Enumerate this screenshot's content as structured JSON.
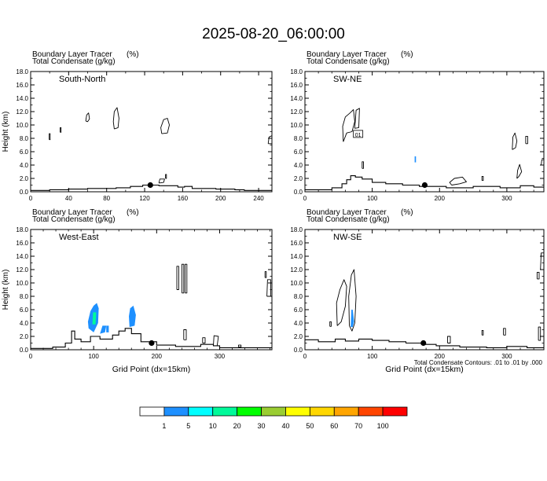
{
  "page": {
    "title": "2025-08-20_06:00:00",
    "colorbar": {
      "values": [
        "1",
        "5",
        "10",
        "20",
        "30",
        "40",
        "50",
        "60",
        "70",
        "100"
      ],
      "colors": [
        "#ffffff",
        "#1e90ff",
        "#00ffff",
        "#00fa9a",
        "#00ff00",
        "#9acd32",
        "#ffff00",
        "#ffd700",
        "#ffa500",
        "#ff4500",
        "#ff0000"
      ]
    },
    "contour_note": "Total Condensate Contours: .01 to .01 by .000"
  },
  "chart_data": [
    {
      "type": "line",
      "panel": "South-North",
      "header_line1": "Boundary Layer Tracer",
      "header_unit1": "(%)",
      "header_line2": "Total Condensate",
      "header_unit2": "(g/kg)",
      "ylabel": "Height (km)",
      "xlabel": "",
      "xlim": [
        0,
        254
      ],
      "ylim": [
        0,
        18
      ],
      "xticks": [
        0,
        40,
        80,
        120,
        160,
        200,
        240
      ],
      "yticks": [
        "0.0",
        "2.0",
        "4.0",
        "6.0",
        "8.0",
        "10.0",
        "12.0",
        "14.0",
        "16.0",
        "18.0"
      ],
      "terrain": {
        "x": [
          0,
          20,
          20,
          40,
          40,
          60,
          60,
          90,
          90,
          105,
          105,
          118,
          118,
          135,
          135,
          155,
          155,
          162,
          162,
          170,
          170,
          195,
          195,
          215,
          215,
          225,
          225,
          254
        ],
        "y": [
          0.2,
          0.2,
          0.3,
          0.3,
          0.4,
          0.4,
          0.5,
          0.5,
          0.6,
          0.6,
          0.8,
          0.8,
          1.0,
          1.0,
          0.9,
          0.9,
          0.7,
          0.7,
          0.8,
          0.8,
          0.5,
          0.5,
          0.4,
          0.4,
          0.3,
          0.3,
          0.2,
          0.2
        ]
      },
      "marker": {
        "x": 126,
        "y": 1.0
      },
      "contours": [
        {
          "x": [
            19.5,
            20.5,
            20.5,
            19.5,
            19.5
          ],
          "y": [
            7.8,
            7.8,
            8.7,
            8.7,
            7.8
          ]
        },
        {
          "x": [
            31,
            32,
            32,
            31,
            31
          ],
          "y": [
            8.9,
            8.9,
            9.6,
            9.6,
            8.9
          ]
        },
        {
          "x": [
            58,
            60,
            62,
            61,
            59,
            58
          ],
          "y": [
            10.6,
            10.5,
            10.9,
            11.8,
            11.5,
            10.6
          ]
        },
        {
          "x": [
            88,
            92,
            93,
            91,
            88,
            87,
            88
          ],
          "y": [
            9.4,
            9.6,
            11.0,
            12.6,
            12.0,
            10.5,
            9.4
          ]
        },
        {
          "x": [
            138,
            144,
            146,
            144,
            140,
            137,
            138
          ],
          "y": [
            8.7,
            8.8,
            10.0,
            11.0,
            10.8,
            9.6,
            8.7
          ]
        },
        {
          "x": [
            135,
            140,
            141,
            136,
            135
          ],
          "y": [
            1.3,
            1.4,
            1.9,
            1.9,
            1.3
          ]
        },
        {
          "x": [
            142,
            143,
            143,
            142,
            142
          ],
          "y": [
            2.0,
            2.0,
            2.6,
            2.6,
            2.0
          ]
        },
        {
          "x": [
            250,
            254,
            254,
            251,
            250
          ],
          "y": [
            7.2,
            7.2,
            8.4,
            8.2,
            7.2
          ]
        }
      ],
      "fills": []
    },
    {
      "type": "line",
      "panel": "SW-NE",
      "header_line1": "Boundary Layer Tracer",
      "header_unit1": "(%)",
      "header_line2": "Total Condensate",
      "header_unit2": "(g/kg)",
      "ylabel": "",
      "xlabel": "",
      "xlim": [
        0,
        355
      ],
      "ylim": [
        0,
        18
      ],
      "xticks": [
        0,
        100,
        200,
        300
      ],
      "yticks": [
        "0.0",
        "2.0",
        "4.0",
        "6.0",
        "8.0",
        "10.0",
        "12.0",
        "14.0",
        "16.0",
        "18.0"
      ],
      "terrain": {
        "x": [
          0,
          40,
          40,
          55,
          55,
          62,
          62,
          68,
          68,
          75,
          75,
          85,
          85,
          100,
          100,
          120,
          120,
          145,
          145,
          170,
          170,
          210,
          210,
          250,
          250,
          290,
          290,
          320,
          320,
          340,
          340,
          355
        ],
        "y": [
          0.3,
          0.3,
          0.6,
          0.6,
          1.2,
          1.2,
          1.8,
          1.8,
          2.4,
          2.4,
          2.2,
          2.2,
          1.9,
          1.9,
          1.4,
          1.4,
          1.2,
          1.2,
          1.0,
          1.0,
          0.8,
          0.8,
          0.6,
          0.6,
          0.8,
          0.8,
          0.6,
          0.6,
          0.9,
          0.9,
          0.7,
          0.7
        ]
      },
      "marker": {
        "x": 178,
        "y": 1.0
      },
      "contours": [
        {
          "x": [
            57,
            62,
            70,
            74,
            72,
            67,
            60,
            56,
            57
          ],
          "y": [
            7.5,
            8.8,
            9.0,
            10.5,
            12.3,
            11.8,
            11.2,
            9.8,
            7.5
          ]
        },
        {
          "x": [
            74,
            80,
            81,
            76,
            74
          ],
          "y": [
            9.5,
            9.6,
            12.5,
            12.2,
            9.5
          ]
        },
        {
          "x": [
            85,
            87,
            87,
            85,
            85
          ],
          "y": [
            3.5,
            3.5,
            4.5,
            4.5,
            3.5
          ]
        },
        {
          "x": [
            218,
            230,
            240,
            234,
            222,
            215,
            218
          ],
          "y": [
            1.0,
            1.2,
            1.5,
            2.2,
            2.0,
            1.4,
            1.0
          ]
        },
        {
          "x": [
            263,
            265,
            265,
            263,
            263
          ],
          "y": [
            1.7,
            1.7,
            2.3,
            2.3,
            1.7
          ]
        },
        {
          "x": [
            315,
            318,
            322,
            319,
            316,
            315
          ],
          "y": [
            2.0,
            2.3,
            3.0,
            4.1,
            3.2,
            2.0
          ]
        },
        {
          "x": [
            308,
            313,
            315,
            312,
            309,
            308
          ],
          "y": [
            6.3,
            6.6,
            7.6,
            8.8,
            8.2,
            6.3
          ]
        },
        {
          "x": [
            328,
            331,
            331,
            328,
            328
          ],
          "y": [
            7.2,
            7.2,
            8.3,
            8.3,
            7.2
          ]
        },
        {
          "x": [
            351,
            355,
            355,
            352,
            351
          ],
          "y": [
            4.0,
            4.0,
            4.8,
            4.8,
            4.0
          ]
        }
      ],
      "fills": [
        {
          "x": [
            163,
            165,
            165,
            163,
            163
          ],
          "y": [
            4.4,
            4.4,
            5.3,
            5.3,
            4.4
          ],
          "color": "#1e90ff"
        }
      ],
      "contour_label": {
        "x": 79,
        "y": 8.6,
        "text": "01"
      }
    },
    {
      "type": "line",
      "panel": "West-East",
      "header_line1": "Boundary Layer Tracer",
      "header_unit1": "(%)",
      "header_line2": "Total Condensate",
      "header_unit2": "(g/kg)",
      "ylabel": "Height (km)",
      "xlabel": "Grid Point (dx=15km)",
      "xlim": [
        0,
        383
      ],
      "ylim": [
        0,
        18
      ],
      "xticks": [
        0,
        100,
        200,
        300
      ],
      "yticks": [
        "0.0",
        "2.0",
        "4.0",
        "6.0",
        "8.0",
        "10.0",
        "12.0",
        "14.0",
        "16.0",
        "18.0"
      ],
      "terrain": {
        "x": [
          0,
          35,
          35,
          55,
          55,
          65,
          65,
          70,
          70,
          80,
          80,
          95,
          95,
          110,
          110,
          130,
          130,
          140,
          140,
          150,
          150,
          160,
          160,
          175,
          175,
          200,
          200,
          230,
          230,
          270,
          270,
          290,
          290,
          300,
          300,
          383
        ],
        "y": [
          0.2,
          0.2,
          0.4,
          0.4,
          1.0,
          1.0,
          2.8,
          2.8,
          1.6,
          1.6,
          1.2,
          1.2,
          2.0,
          2.0,
          1.6,
          1.6,
          2.2,
          2.2,
          2.8,
          2.8,
          3.2,
          3.2,
          2.4,
          2.4,
          1.2,
          1.2,
          0.7,
          0.7,
          0.5,
          0.5,
          0.8,
          0.8,
          0.6,
          0.6,
          0.3,
          0.3
        ]
      },
      "marker": {
        "x": 192,
        "y": 1.0
      },
      "contours": [
        {
          "x": [
            240,
            243,
            243,
            240,
            240
          ],
          "y": [
            8.5,
            8.5,
            12.8,
            12.8,
            8.5
          ]
        },
        {
          "x": [
            245,
            248,
            248,
            245,
            245
          ],
          "y": [
            8.5,
            8.5,
            12.8,
            12.8,
            8.5
          ]
        },
        {
          "x": [
            232,
            235,
            235,
            232,
            232
          ],
          "y": [
            9.0,
            9.0,
            12.5,
            12.5,
            9.0
          ]
        },
        {
          "x": [
            273,
            277,
            277,
            273,
            273
          ],
          "y": [
            1.0,
            1.0,
            1.8,
            1.8,
            1.0
          ]
        },
        {
          "x": [
            243,
            247,
            247,
            243,
            243
          ],
          "y": [
            1.5,
            1.5,
            3.0,
            3.0,
            1.5
          ]
        },
        {
          "x": [
            290,
            296,
            298,
            291,
            290
          ],
          "y": [
            0.6,
            0.6,
            2.0,
            2.1,
            0.6
          ]
        },
        {
          "x": [
            330,
            334,
            334,
            330,
            330
          ],
          "y": [
            0.4,
            0.4,
            0.7,
            0.7,
            0.4
          ]
        },
        {
          "x": [
            372,
            374,
            374,
            372,
            372
          ],
          "y": [
            10.8,
            10.8,
            11.7,
            11.7,
            10.8
          ]
        },
        {
          "x": [
            375,
            381,
            381,
            376,
            375
          ],
          "y": [
            8.0,
            8.0,
            10.5,
            10.5,
            8.0
          ]
        }
      ],
      "fills": [
        {
          "x": [
            92,
            100,
            107,
            108,
            105,
            100,
            95,
            91,
            92
          ],
          "y": [
            3.2,
            2.6,
            4.0,
            6.2,
            7.0,
            6.6,
            5.8,
            4.2,
            3.2
          ],
          "color": "#1e90ff"
        },
        {
          "x": [
            98,
            103,
            104,
            99,
            98
          ],
          "y": [
            3.8,
            3.8,
            5.6,
            5.6,
            3.8
          ],
          "color": "#00fa9a"
        },
        {
          "x": [
            110,
            118,
            120,
            114,
            110
          ],
          "y": [
            2.4,
            2.6,
            3.6,
            3.6,
            2.4
          ],
          "color": "#1e90ff"
        },
        {
          "x": [
            120,
            124,
            124,
            120,
            120
          ],
          "y": [
            2.6,
            2.6,
            3.6,
            3.6,
            2.6
          ],
          "color": "#1e90ff"
        },
        {
          "x": [
            157,
            165,
            167,
            163,
            158,
            156,
            157
          ],
          "y": [
            3.4,
            3.6,
            5.2,
            6.6,
            6.2,
            5.0,
            3.4
          ],
          "color": "#1e90ff"
        }
      ]
    },
    {
      "type": "line",
      "panel": "NW-SE",
      "header_line1": "Boundary Layer Tracer",
      "header_unit1": "(%)",
      "header_line2": "Total Condensate",
      "header_unit2": "(g/kg)",
      "ylabel": "",
      "xlabel": "Grid Point (dx=15km)",
      "xlim": [
        0,
        355
      ],
      "ylim": [
        0,
        18
      ],
      "xticks": [
        0,
        100,
        200,
        300
      ],
      "yticks": [
        "0.0",
        "2.0",
        "4.0",
        "6.0",
        "8.0",
        "10.0",
        "12.0",
        "14.0",
        "16.0",
        "18.0"
      ],
      "terrain": {
        "x": [
          0,
          20,
          20,
          45,
          45,
          60,
          60,
          80,
          80,
          100,
          100,
          125,
          125,
          150,
          150,
          175,
          175,
          195,
          195,
          230,
          230,
          270,
          270,
          300,
          300,
          330,
          330,
          355
        ],
        "y": [
          1.5,
          1.5,
          1.2,
          1.2,
          1.6,
          1.6,
          1.3,
          1.3,
          1.6,
          1.6,
          1.4,
          1.4,
          1.2,
          1.2,
          1.0,
          1.0,
          0.8,
          0.8,
          0.6,
          0.6,
          0.4,
          0.4,
          0.3,
          0.3,
          0.5,
          0.5,
          0.3,
          0.3
        ]
      },
      "marker": {
        "x": 176,
        "y": 1.0
      },
      "contours": [
        {
          "x": [
            48,
            54,
            60,
            62,
            58,
            52,
            47,
            48
          ],
          "y": [
            3.6,
            4.2,
            6.5,
            9.5,
            10.5,
            9.0,
            7.0,
            3.6
          ]
        },
        {
          "x": [
            66,
            70,
            74,
            76,
            73,
            69,
            65,
            66
          ],
          "y": [
            3.6,
            2.8,
            4.0,
            8.0,
            12.0,
            11.2,
            8.0,
            3.6
          ]
        },
        {
          "x": [
            37,
            39,
            39,
            37,
            37
          ],
          "y": [
            3.5,
            3.5,
            4.2,
            4.2,
            3.5
          ]
        },
        {
          "x": [
            212,
            216,
            216,
            212,
            212
          ],
          "y": [
            1.0,
            1.0,
            2.0,
            2.0,
            1.0
          ]
        },
        {
          "x": [
            263,
            265,
            265,
            263,
            263
          ],
          "y": [
            2.2,
            2.2,
            2.9,
            2.9,
            2.2
          ]
        },
        {
          "x": [
            295,
            298,
            298,
            295,
            295
          ],
          "y": [
            2.2,
            2.2,
            3.2,
            3.2,
            2.2
          ]
        },
        {
          "x": [
            345,
            348,
            348,
            345,
            345
          ],
          "y": [
            10.6,
            10.6,
            11.6,
            11.6,
            10.6
          ]
        },
        {
          "x": [
            350,
            355,
            355,
            351,
            350
          ],
          "y": [
            12.0,
            12.0,
            14.5,
            14.5,
            12.0
          ]
        },
        {
          "x": [
            347,
            350,
            350,
            347,
            347
          ],
          "y": [
            1.4,
            1.4,
            3.4,
            3.4,
            1.4
          ]
        }
      ],
      "fills": [
        {
          "x": [
            68,
            71,
            73,
            71,
            69,
            68
          ],
          "y": [
            3.4,
            3.4,
            4.2,
            6.0,
            6.0,
            3.4
          ],
          "color": "#1e90ff"
        }
      ]
    }
  ]
}
